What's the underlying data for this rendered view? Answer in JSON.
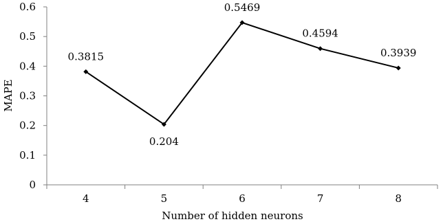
{
  "chart_data": {
    "type": "line",
    "xlabel": "Number of hidden neurons",
    "ylabel": "MAPE",
    "categories": [
      "4",
      "5",
      "6",
      "7",
      "8"
    ],
    "values": [
      0.3815,
      0.204,
      0.5469,
      0.4594,
      0.3939
    ],
    "data_labels": [
      "0.3815",
      "0.204",
      "0.5469",
      "0.4594",
      "0.3939"
    ],
    "ylim": [
      0,
      0.6
    ],
    "yticks": [
      "0",
      "0.1",
      "0.2",
      "0.3",
      "0.4",
      "0.5",
      "0.6"
    ],
    "grid": false,
    "legend": false,
    "colors": {
      "line": "#000000",
      "marker": "#000000",
      "axis": "#808080"
    }
  }
}
